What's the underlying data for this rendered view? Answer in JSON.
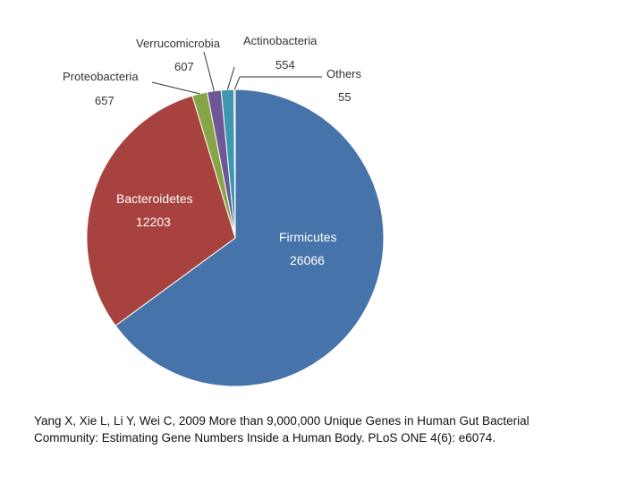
{
  "chart_data": {
    "type": "pie",
    "title": "",
    "slices": [
      {
        "label": "Firmicutes",
        "value": 26066,
        "color": "#4674aa"
      },
      {
        "label": "Bacteroidetes",
        "value": 12203,
        "color": "#a8423f"
      },
      {
        "label": "Proteobacteria",
        "value": 657,
        "color": "#86a546"
      },
      {
        "label": "Verrucomicrobia",
        "value": 607,
        "color": "#6e5796"
      },
      {
        "label": "Actinobacteria",
        "value": 554,
        "color": "#3d97b1"
      },
      {
        "label": "Others",
        "value": 55,
        "color": "#d9822e"
      }
    ],
    "legend": "none"
  },
  "citation": {
    "line1": "Yang X, Xie L, Li Y, Wei C, 2009 More than 9,000,000 Unique Genes in Human Gut Bacterial",
    "line2": "Community: Estimating Gene Numbers Inside a Human Body. PLoS ONE 4(6): e6074."
  }
}
